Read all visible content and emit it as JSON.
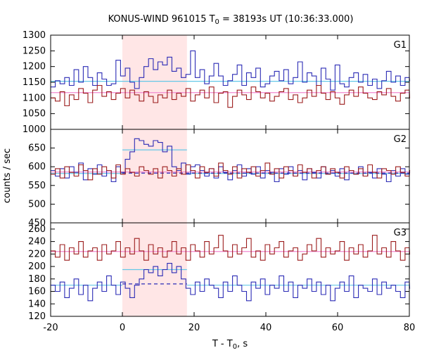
{
  "chart_data": {
    "type": "line",
    "title": "KONUS-WIND 961015 T",
    "title_sub": "0",
    "title_rest": " = 38193s UT (10:36:33.000)",
    "xlabel": "T - T",
    "xlabel_sub": "0",
    "xlabel_rest": ", s",
    "ylabel": "counts / sec",
    "xlim": [
      -20,
      80
    ],
    "x_ticks": [
      -20,
      0,
      20,
      40,
      60,
      80
    ],
    "highlight": {
      "x": [
        0,
        18
      ],
      "color": "#ffe6e6"
    },
    "colors": {
      "blue": "#2b2bb5",
      "red": "#9b1c1c",
      "cyan": "#64c8e8",
      "pink": "#f08ad0"
    },
    "bin_width": 1.3,
    "x_start": -20,
    "panels": [
      {
        "label": "G1",
        "ylim": [
          1000,
          1300
        ],
        "y_ticks": [
          1000,
          1050,
          1100,
          1150,
          1200,
          1250,
          1300
        ],
        "series": [
          {
            "color": "blue",
            "values": [
              1135,
              1155,
              1145,
              1165,
              1140,
              1190,
              1150,
              1200,
              1165,
              1140,
              1180,
              1160,
              1140,
              1145,
              1220,
              1170,
              1195,
              1150,
              1130,
              1165,
              1200,
              1225,
              1190,
              1215,
              1205,
              1230,
              1185,
              1195,
              1165,
              1175,
              1250,
              1165,
              1190,
              1145,
              1170,
              1210,
              1170,
              1140,
              1155,
              1175,
              1205,
              1140,
              1180,
              1165,
              1195,
              1135,
              1145,
              1170,
              1185,
              1155,
              1190,
              1145,
              1165,
              1215,
              1150,
              1180,
              1170,
              1140,
              1195,
              1160,
              1125,
              1205,
              1145,
              1135,
              1165,
              1180,
              1150,
              1175,
              1140,
              1160,
              1130,
              1155,
              1185,
              1150,
              1170,
              1140,
              1165,
              1155
            ]
          },
          {
            "color": "red",
            "values": [
              1100,
              1090,
              1120,
              1075,
              1110,
              1095,
              1130,
              1115,
              1085,
              1125,
              1140,
              1105,
              1120,
              1095,
              1115,
              1130,
              1100,
              1125,
              1110,
              1090,
              1120,
              1105,
              1085,
              1110,
              1100,
              1125,
              1095,
              1115,
              1105,
              1130,
              1090,
              1110,
              1125,
              1100,
              1135,
              1085,
              1115,
              1120,
              1070,
              1105,
              1125,
              1110,
              1095,
              1135,
              1120,
              1100,
              1115,
              1090,
              1105,
              1120,
              1130,
              1095,
              1110,
              1085,
              1100,
              1125,
              1105,
              1140,
              1115,
              1095,
              1120,
              1100,
              1080,
              1110,
              1125,
              1105,
              1135,
              1115,
              1100,
              1095,
              1120,
              1110,
              1130,
              1105,
              1090,
              1115,
              1125,
              1100
            ]
          }
        ],
        "fits": [
          {
            "color": "cyan",
            "style": "solid",
            "x": [
              -20,
              80
            ],
            "y": 1153
          },
          {
            "color": "pink",
            "style": "solid",
            "x": [
              -20,
              80
            ],
            "y": 1117
          }
        ]
      },
      {
        "label": "G2",
        "ylim": [
          450,
          700
        ],
        "y_ticks": [
          450,
          500,
          550,
          600,
          650
        ],
        "series": [
          {
            "color": "blue",
            "values": [
              590,
              575,
              595,
              570,
              600,
              585,
              610,
              565,
              595,
              580,
              605,
              575,
              590,
              560,
              600,
              585,
              620,
              640,
              675,
              670,
              660,
              655,
              670,
              665,
              640,
              655,
              600,
              590,
              610,
              580,
              600,
              605,
              590,
              575,
              595,
              570,
              600,
              585,
              565,
              590,
              605,
              575,
              595,
              580,
              600,
              570,
              590,
              585,
              560,
              595,
              580,
              600,
              575,
              590,
              565,
              595,
              585,
              570,
              600,
              580,
              590,
              575,
              595,
              565,
              590,
              580,
              600,
              575,
              585,
              570,
              595,
              580,
              560,
              590,
              575,
              595,
              580,
              585
            ]
          },
          {
            "color": "red",
            "values": [
              580,
              595,
              570,
              600,
              585,
              575,
              605,
              590,
              565,
              595,
              580,
              600,
              590,
              570,
              605,
              580,
              595,
              585,
              575,
              600,
              590,
              580,
              595,
              570,
              600,
              590,
              575,
              595,
              580,
              605,
              590,
              570,
              600,
              585,
              595,
              575,
              610,
              590,
              580,
              600,
              570,
              595,
              585,
              600,
              575,
              590,
              610,
              580,
              595,
              570,
              600,
              590,
              575,
              605,
              585,
              595,
              570,
              590,
              600,
              580,
              595,
              585,
              570,
              600,
              590,
              580,
              595,
              575,
              605,
              585,
              570,
              595,
              590,
              580,
              600,
              585,
              575,
              590
            ]
          }
        ],
        "fits": [
          {
            "color": "cyan",
            "style": "solid",
            "x": [
              0,
              18
            ],
            "y": 645
          },
          {
            "color": "cyan",
            "style": "solid",
            "x": [
              18,
              80
            ],
            "y": 582
          },
          {
            "color": "cyan",
            "style": "solid",
            "x": [
              -20,
              0
            ],
            "y": 582
          },
          {
            "color": "blue",
            "style": "dashed",
            "x": [
              0,
              80
            ],
            "y": 583
          },
          {
            "color": "pink",
            "style": "solid",
            "x": [
              -20,
              80
            ],
            "y": 586
          }
        ]
      },
      {
        "label": "G3",
        "ylim": [
          120,
          270
        ],
        "y_ticks": [
          120,
          140,
          160,
          180,
          200,
          220,
          240,
          260
        ],
        "series": [
          {
            "color": "blue",
            "values": [
              170,
              160,
              175,
              150,
              165,
              180,
              155,
              170,
              145,
              165,
              175,
              160,
              185,
              170,
              155,
              175,
              165,
              150,
              170,
              180,
              195,
              190,
              200,
              185,
              195,
              205,
              190,
              200,
              180,
              165,
              155,
              175,
              160,
              180,
              170,
              165,
              150,
              175,
              160,
              185,
              170,
              160,
              145,
              175,
              165,
              180,
              155,
              170,
              165,
              185,
              160,
              175,
              150,
              170,
              165,
              180,
              160,
              175,
              155,
              170,
              145,
              165,
              175,
              160,
              185,
              150,
              170,
              165,
              160,
              180,
              155,
              175,
              165,
              170,
              160,
              150,
              175,
              165
            ]
          },
          {
            "color": "red",
            "values": [
              225,
              215,
              235,
              210,
              230,
              220,
              240,
              215,
              225,
              230,
              210,
              235,
              220,
              225,
              240,
              215,
              230,
              220,
              245,
              225,
              210,
              235,
              220,
              230,
              215,
              225,
              240,
              220,
              230,
              210,
              235,
              225,
              215,
              240,
              220,
              230,
              250,
              225,
              215,
              235,
              220,
              230,
              245,
              215,
              225,
              210,
              235,
              220,
              230,
              240,
              215,
              225,
              230,
              210,
              220,
              235,
              225,
              245,
              215,
              230,
              220,
              225,
              240,
              210,
              230,
              220,
              235,
              215,
              225,
              250,
              220,
              230,
              215,
              240,
              225,
              210,
              230,
              220
            ]
          }
        ],
        "fits": [
          {
            "color": "cyan",
            "style": "solid",
            "x": [
              0,
              18
            ],
            "y": 195
          },
          {
            "color": "cyan",
            "style": "solid",
            "x": [
              18,
              80
            ],
            "y": 170
          },
          {
            "color": "cyan",
            "style": "solid",
            "x": [
              -20,
              0
            ],
            "y": 170
          },
          {
            "color": "blue",
            "style": "dashed",
            "x": [
              0,
              18
            ],
            "y": 172
          },
          {
            "color": "pink",
            "style": "solid",
            "x": [
              -20,
              80
            ],
            "y": 224
          }
        ]
      }
    ]
  }
}
